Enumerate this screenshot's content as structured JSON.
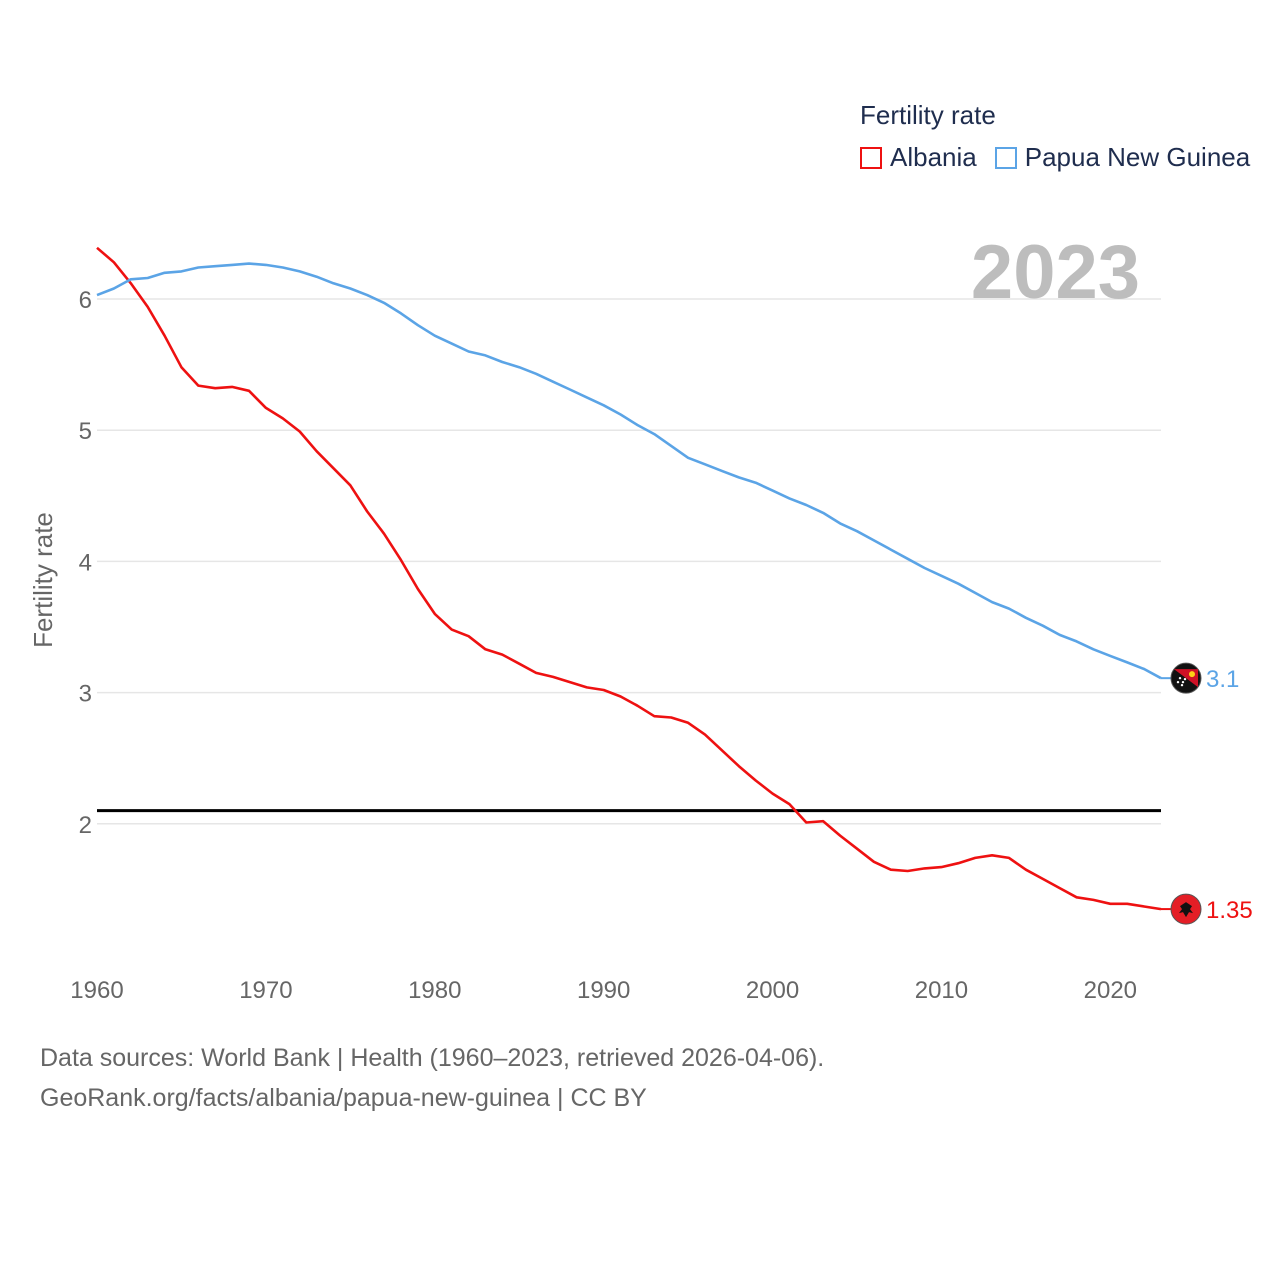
{
  "legend": {
    "title": "Fertility rate",
    "albania_label": "Albania",
    "png_label": "Papua New Guinea"
  },
  "colors": {
    "albania": "#ee1111",
    "png": "#5ba4e6",
    "reference": "#000000",
    "grid": "#e6e6e6",
    "axis_text": "#666666",
    "year": "#bdbdbd"
  },
  "source": {
    "line1": "Data sources: World Bank | Health (1960–2023, retrieved 2026-04-06).",
    "line2": "GeoRank.org/facts/albania/papua-new-guinea | CC BY"
  },
  "chart_data": {
    "type": "line",
    "title": "Fertility rate",
    "year_label": "2023",
    "ylabel": "Fertility rate",
    "xlabel": "",
    "xlim": [
      1960,
      2023
    ],
    "ylim": [
      1.0,
      6.5
    ],
    "yticks": [
      2,
      3,
      4,
      5,
      6
    ],
    "xticks": [
      1960,
      1970,
      1980,
      1990,
      2000,
      2010,
      2020
    ],
    "reference_line": 2.1,
    "x": [
      1960,
      1961,
      1962,
      1963,
      1964,
      1965,
      1966,
      1967,
      1968,
      1969,
      1970,
      1971,
      1972,
      1973,
      1974,
      1975,
      1976,
      1977,
      1978,
      1979,
      1980,
      1981,
      1982,
      1983,
      1984,
      1985,
      1986,
      1987,
      1988,
      1989,
      1990,
      1991,
      1992,
      1993,
      1994,
      1995,
      1996,
      1997,
      1998,
      1999,
      2000,
      2001,
      2002,
      2003,
      2004,
      2005,
      2006,
      2007,
      2008,
      2009,
      2010,
      2011,
      2012,
      2013,
      2014,
      2015,
      2016,
      2017,
      2018,
      2019,
      2020,
      2021,
      2022,
      2023
    ],
    "series": [
      {
        "name": "Albania",
        "end_label": "1.35",
        "values": [
          6.39,
          6.28,
          6.12,
          5.94,
          5.72,
          5.48,
          5.34,
          5.32,
          5.33,
          5.3,
          5.17,
          5.09,
          4.99,
          4.84,
          4.71,
          4.58,
          4.38,
          4.21,
          4.01,
          3.79,
          3.6,
          3.48,
          3.43,
          3.33,
          3.29,
          3.22,
          3.15,
          3.12,
          3.08,
          3.04,
          3.02,
          2.97,
          2.9,
          2.82,
          2.81,
          2.77,
          2.68,
          2.56,
          2.44,
          2.33,
          2.23,
          2.15,
          2.01,
          2.02,
          1.91,
          1.81,
          1.71,
          1.65,
          1.64,
          1.66,
          1.67,
          1.7,
          1.74,
          1.76,
          1.74,
          1.65,
          1.58,
          1.51,
          1.44,
          1.42,
          1.39,
          1.39,
          1.37,
          1.35
        ]
      },
      {
        "name": "Papua New Guinea",
        "end_label": "3.1",
        "values": [
          6.03,
          6.08,
          6.15,
          6.16,
          6.2,
          6.21,
          6.24,
          6.25,
          6.26,
          6.27,
          6.26,
          6.24,
          6.21,
          6.17,
          6.12,
          6.08,
          6.03,
          5.97,
          5.89,
          5.8,
          5.72,
          5.66,
          5.6,
          5.57,
          5.52,
          5.48,
          5.43,
          5.37,
          5.31,
          5.25,
          5.19,
          5.12,
          5.04,
          4.97,
          4.88,
          4.79,
          4.74,
          4.69,
          4.64,
          4.6,
          4.54,
          4.48,
          4.43,
          4.37,
          4.29,
          4.23,
          4.16,
          4.09,
          4.02,
          3.95,
          3.89,
          3.83,
          3.76,
          3.69,
          3.64,
          3.57,
          3.51,
          3.44,
          3.39,
          3.33,
          3.28,
          3.23,
          3.18,
          3.11
        ]
      }
    ]
  }
}
